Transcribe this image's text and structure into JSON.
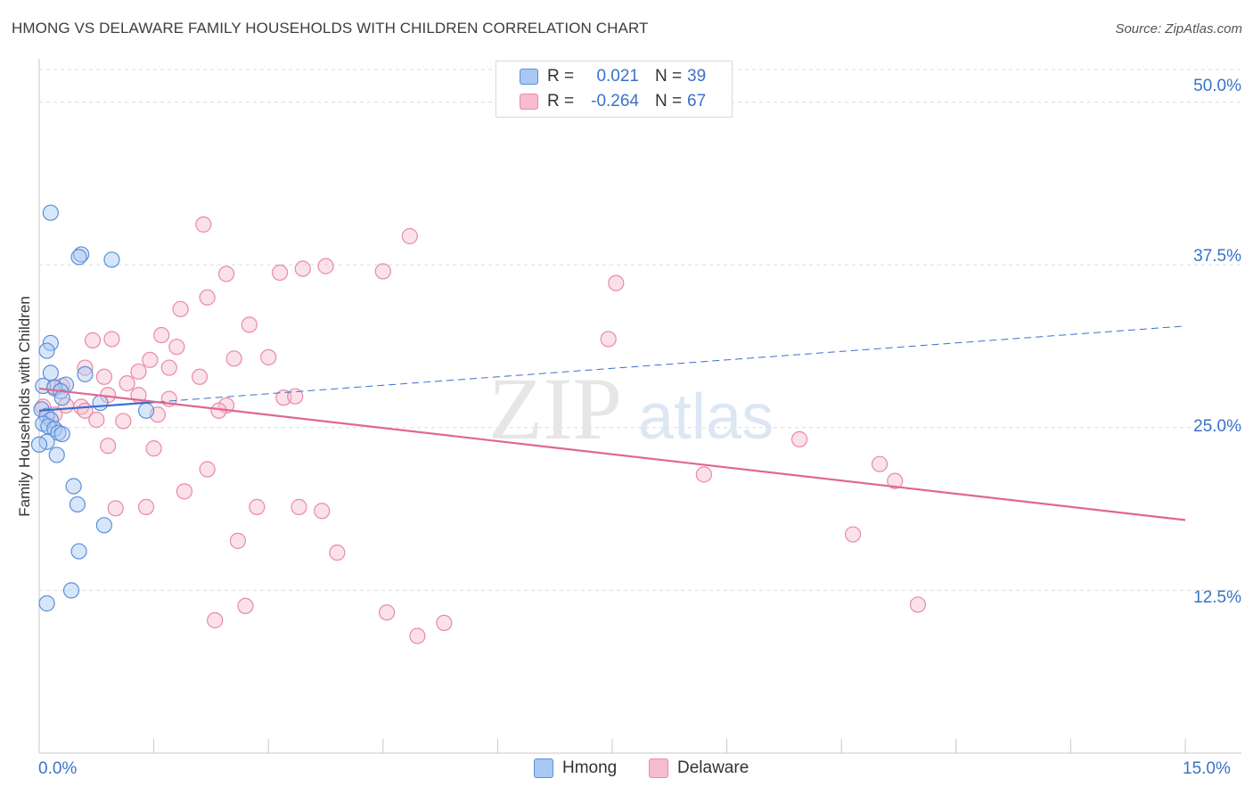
{
  "title": "HMONG VS DELAWARE FAMILY HOUSEHOLDS WITH CHILDREN CORRELATION CHART",
  "source": "Source: ZipAtlas.com",
  "watermark": {
    "zip": "ZIP",
    "atlas": "atlas"
  },
  "colors": {
    "hmong_fill": "#a9c8f2",
    "hmong_stroke": "#5b8fd9",
    "hmong_line": "#3a6fd0",
    "delaware_fill": "#f7bccd",
    "delaware_stroke": "#e88aa7",
    "delaware_line": "#e0678f",
    "tick_text": "#3a72c8",
    "grid": "#dcdcdc"
  },
  "stats": [
    {
      "swatch": "hmong",
      "r_label": "R =",
      "r_value": "0.021",
      "n_label": "N =",
      "n_value": "39"
    },
    {
      "swatch": "delaware",
      "r_label": "R =",
      "r_value": "-0.264",
      "n_label": "N =",
      "n_value": "67"
    }
  ],
  "legend": [
    {
      "name": "Hmong",
      "color": "hmong"
    },
    {
      "name": "Delaware",
      "color": "delaware"
    }
  ],
  "x_ticks": {
    "left": "0.0%",
    "right": "15.0%"
  },
  "y_ticks": [
    "50.0%",
    "37.5%",
    "25.0%",
    "12.5%"
  ],
  "chart_data": {
    "type": "scatter",
    "title": "HMONG VS DELAWARE FAMILY HOUSEHOLDS WITH CHILDREN CORRELATION CHART",
    "xlabel": "",
    "ylabel": "Family Households with Children",
    "xlim": [
      0,
      15
    ],
    "ylim": [
      0,
      52.5
    ],
    "y_grid": [
      12.5,
      25.0,
      37.5,
      50.0
    ],
    "grid": true,
    "legend_position": "bottom-center",
    "series": [
      {
        "name": "Hmong",
        "color": "#a9c8f2",
        "points": [
          [
            0.15,
            41.5
          ],
          [
            0.55,
            38.3
          ],
          [
            0.52,
            38.1
          ],
          [
            0.95,
            37.9
          ],
          [
            0.15,
            31.5
          ],
          [
            0.1,
            30.9
          ],
          [
            0.15,
            29.2
          ],
          [
            0.6,
            29.1
          ],
          [
            0.35,
            28.3
          ],
          [
            0.05,
            28.2
          ],
          [
            0.2,
            28.1
          ],
          [
            0.28,
            27.8
          ],
          [
            0.3,
            27.3
          ],
          [
            0.8,
            26.9
          ],
          [
            1.4,
            26.3
          ],
          [
            0.03,
            26.4
          ],
          [
            0.1,
            25.9
          ],
          [
            0.15,
            25.6
          ],
          [
            0.05,
            25.3
          ],
          [
            0.12,
            25.1
          ],
          [
            0.2,
            24.9
          ],
          [
            0.25,
            24.6
          ],
          [
            0.1,
            23.9
          ],
          [
            0.0,
            23.7
          ],
          [
            0.23,
            22.9
          ],
          [
            0.45,
            20.5
          ],
          [
            0.5,
            19.1
          ],
          [
            0.85,
            17.5
          ],
          [
            0.52,
            15.5
          ],
          [
            0.42,
            12.5
          ],
          [
            0.1,
            11.5
          ],
          [
            0.3,
            24.5
          ]
        ]
      },
      {
        "name": "Delaware",
        "color": "#f7bccd",
        "points": [
          [
            2.15,
            40.6
          ],
          [
            4.85,
            39.7
          ],
          [
            2.45,
            36.8
          ],
          [
            3.15,
            36.9
          ],
          [
            3.45,
            37.2
          ],
          [
            3.75,
            37.4
          ],
          [
            4.5,
            37.0
          ],
          [
            7.55,
            36.1
          ],
          [
            2.2,
            35.0
          ],
          [
            1.85,
            34.1
          ],
          [
            2.75,
            32.9
          ],
          [
            1.6,
            32.1
          ],
          [
            0.7,
            31.7
          ],
          [
            0.95,
            31.8
          ],
          [
            1.8,
            31.2
          ],
          [
            7.45,
            31.8
          ],
          [
            2.55,
            30.3
          ],
          [
            3.0,
            30.4
          ],
          [
            1.45,
            30.2
          ],
          [
            0.6,
            29.6
          ],
          [
            1.7,
            29.6
          ],
          [
            1.3,
            29.3
          ],
          [
            0.85,
            28.9
          ],
          [
            2.1,
            28.9
          ],
          [
            1.15,
            28.4
          ],
          [
            0.2,
            28.0
          ],
          [
            0.3,
            28.2
          ],
          [
            1.3,
            27.5
          ],
          [
            0.9,
            27.5
          ],
          [
            3.2,
            27.3
          ],
          [
            3.35,
            27.4
          ],
          [
            1.7,
            27.2
          ],
          [
            0.05,
            26.6
          ],
          [
            0.55,
            26.6
          ],
          [
            0.35,
            26.7
          ],
          [
            2.45,
            26.7
          ],
          [
            0.6,
            26.3
          ],
          [
            2.35,
            26.3
          ],
          [
            1.55,
            26.0
          ],
          [
            0.2,
            26.0
          ],
          [
            0.75,
            25.6
          ],
          [
            1.1,
            25.5
          ],
          [
            0.9,
            23.6
          ],
          [
            1.5,
            23.4
          ],
          [
            9.95,
            24.1
          ],
          [
            11.0,
            22.2
          ],
          [
            8.7,
            21.4
          ],
          [
            11.2,
            20.9
          ],
          [
            2.2,
            21.8
          ],
          [
            1.9,
            20.1
          ],
          [
            1.0,
            18.8
          ],
          [
            1.4,
            18.9
          ],
          [
            2.85,
            18.9
          ],
          [
            3.4,
            18.9
          ],
          [
            3.7,
            18.6
          ],
          [
            2.6,
            16.3
          ],
          [
            3.9,
            15.4
          ],
          [
            10.65,
            16.8
          ],
          [
            2.7,
            11.3
          ],
          [
            2.3,
            10.2
          ],
          [
            4.55,
            10.8
          ],
          [
            5.3,
            10.0
          ],
          [
            4.95,
            9.0
          ],
          [
            11.5,
            11.4
          ]
        ]
      }
    ],
    "trendlines": [
      {
        "series": "Hmong",
        "solid_range": [
          0,
          1.55
        ],
        "dashed_range": [
          1.55,
          15
        ],
        "y_at_0": 26.3,
        "y_at_15": 32.8
      },
      {
        "series": "Delaware",
        "solid_range": [
          0,
          15
        ],
        "y_at_0": 28.0,
        "y_at_15": 17.9
      }
    ]
  }
}
